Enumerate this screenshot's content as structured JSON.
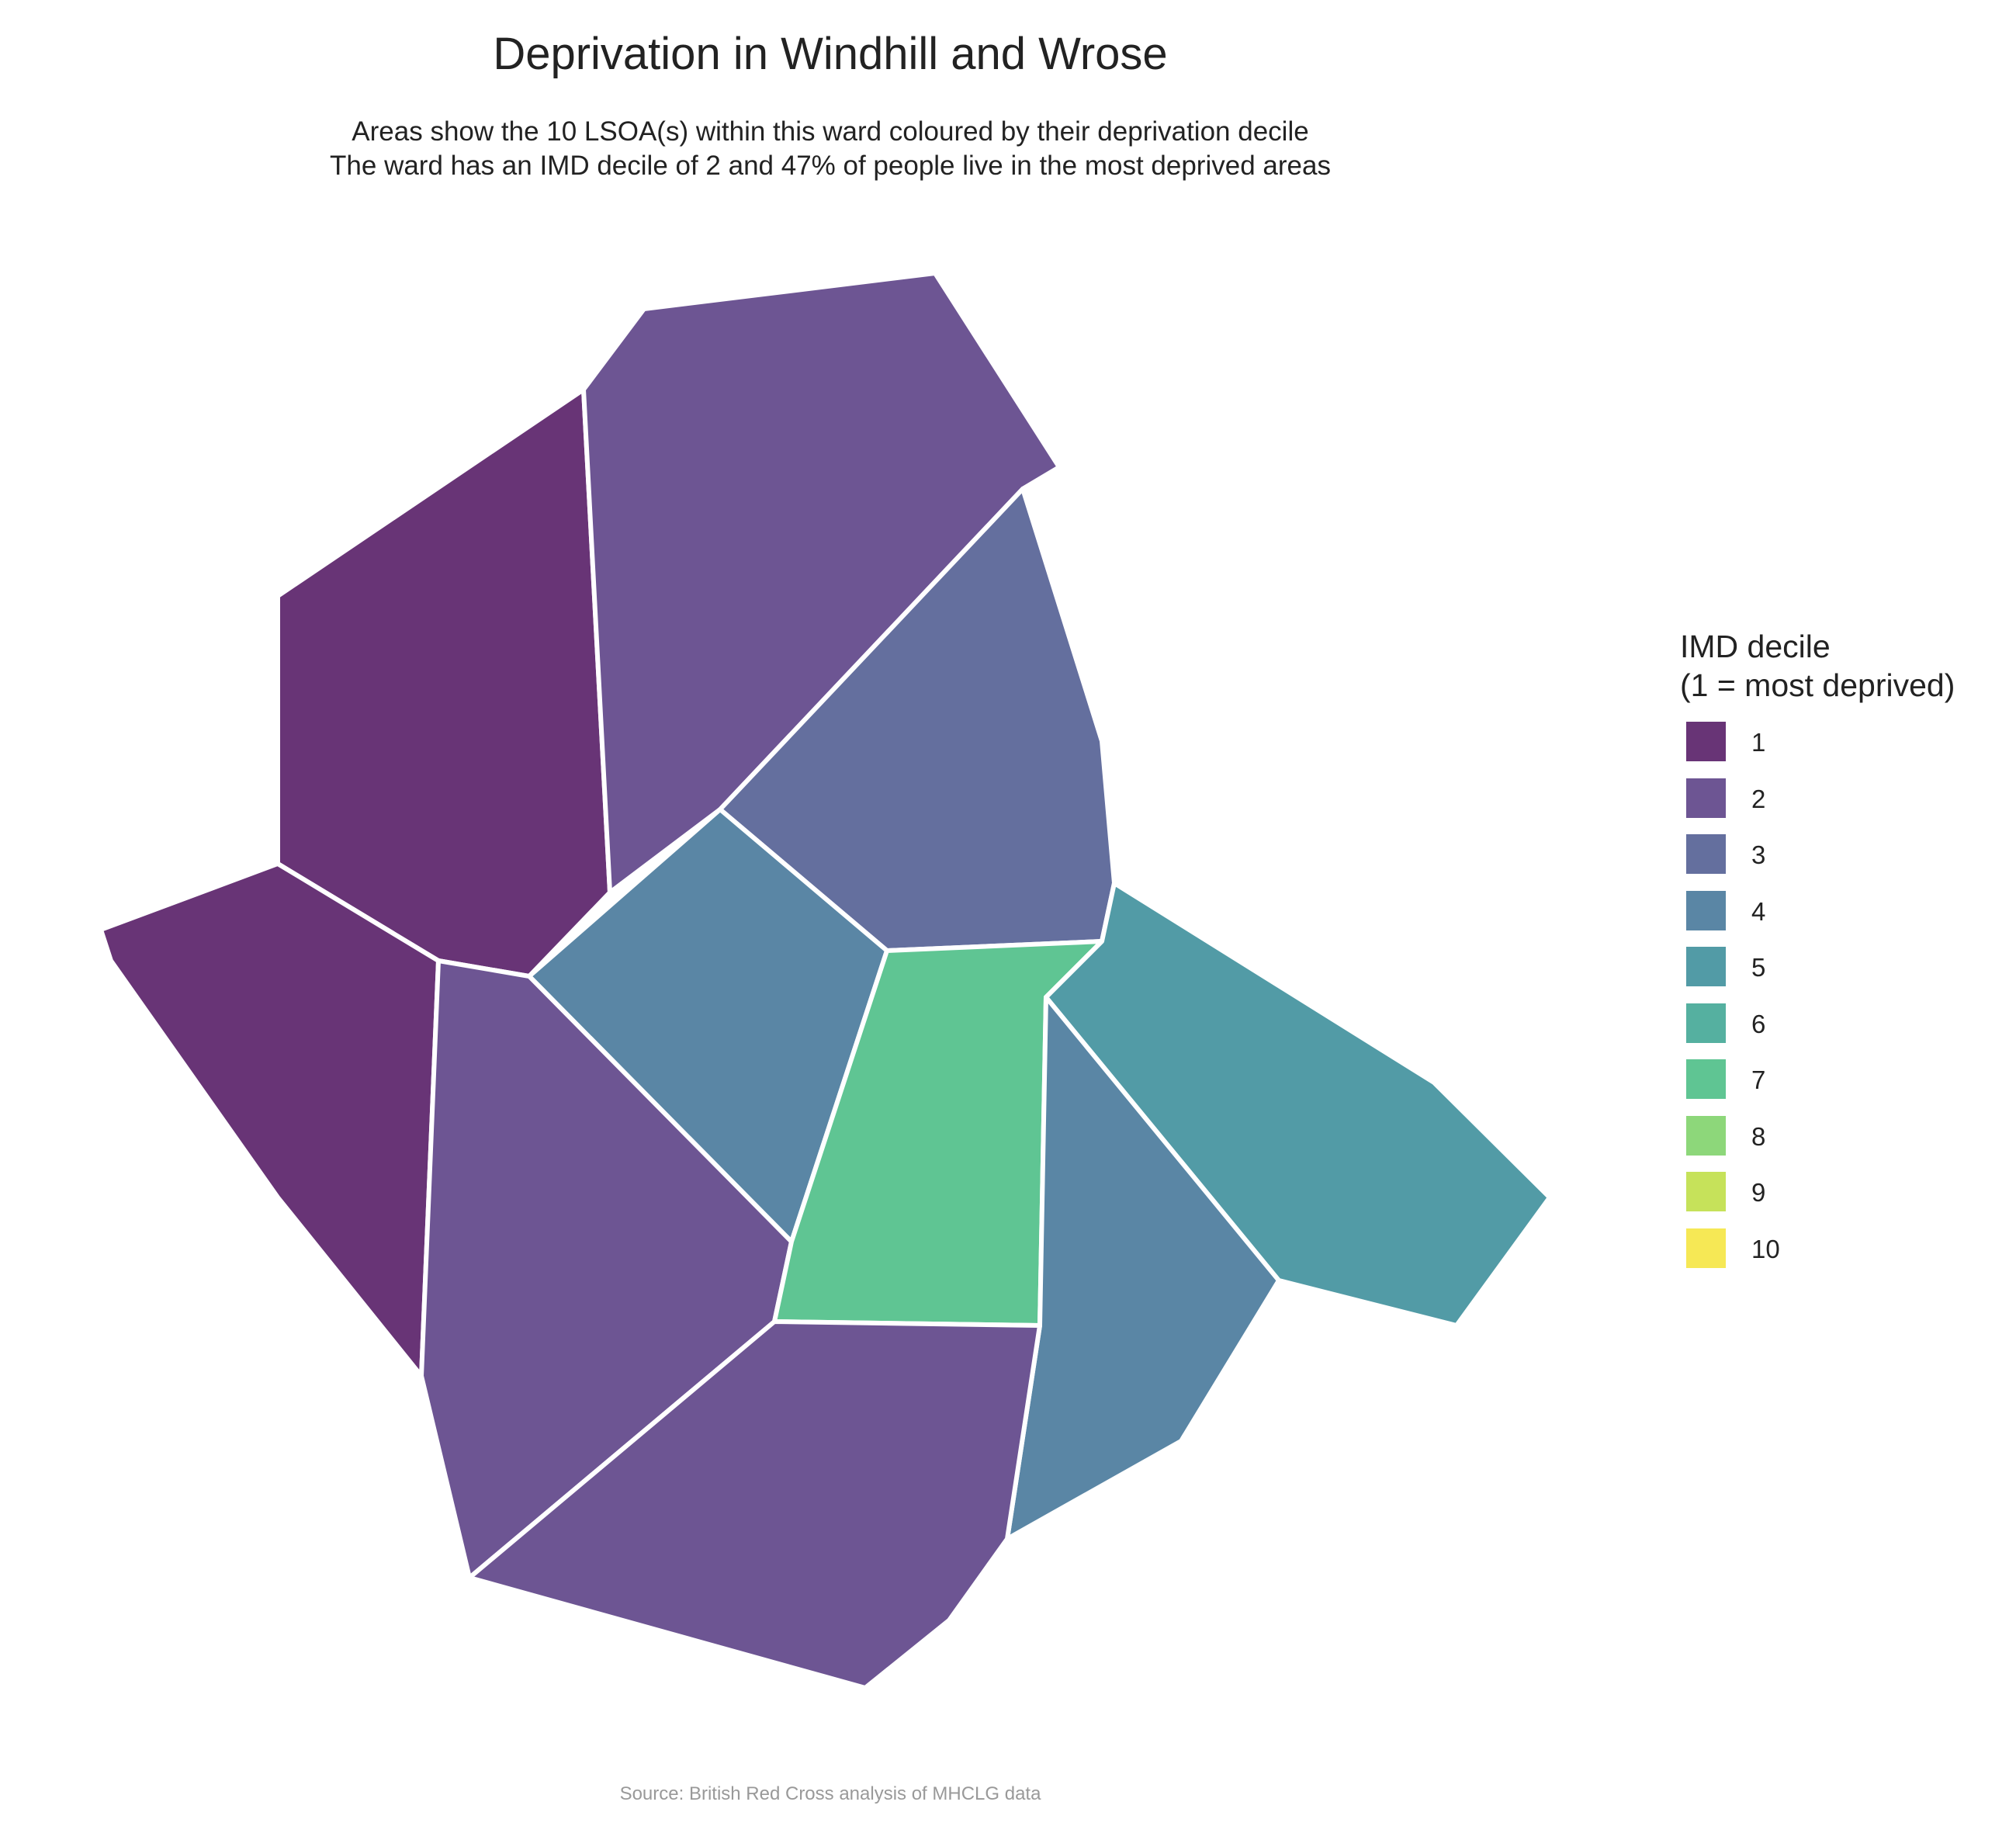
{
  "title": "Deprivation in Windhill and Wrose",
  "subtitle": {
    "line1": "Areas show the 10 LSOA(s) within this ward coloured by their deprivation decile",
    "line2": "The ward has an IMD decile of 2 and 47% of people live in the most deprived areas"
  },
  "legend": {
    "title_line1": "IMD decile",
    "title_line2": "(1 = most deprived)",
    "items": [
      {
        "label": "1",
        "color": "#683476"
      },
      {
        "label": "2",
        "color": "#6D5593"
      },
      {
        "label": "3",
        "color": "#646F9E"
      },
      {
        "label": "4",
        "color": "#5A86A5"
      },
      {
        "label": "5",
        "color": "#529BA6"
      },
      {
        "label": "6",
        "color": "#55B0A0"
      },
      {
        "label": "7",
        "color": "#5FC593"
      },
      {
        "label": "8",
        "color": "#8DD77A"
      },
      {
        "label": "9",
        "color": "#C6E25A"
      },
      {
        "label": "10",
        "color": "#F6E855"
      }
    ]
  },
  "map": {
    "areas": [
      {
        "name": "lsoa-north-west",
        "decile": 1
      },
      {
        "name": "lsoa-west",
        "decile": 1
      },
      {
        "name": "lsoa-north",
        "decile": 2
      },
      {
        "name": "lsoa-south-west",
        "decile": 2
      },
      {
        "name": "lsoa-south",
        "decile": 2
      },
      {
        "name": "lsoa-north-east",
        "decile": 3
      },
      {
        "name": "lsoa-central",
        "decile": 4
      },
      {
        "name": "lsoa-south-east",
        "decile": 4
      },
      {
        "name": "lsoa-east",
        "decile": 5
      },
      {
        "name": "lsoa-centre-east",
        "decile": 7
      }
    ]
  },
  "source": "Source: British Red Cross analysis of MHCLG data"
}
